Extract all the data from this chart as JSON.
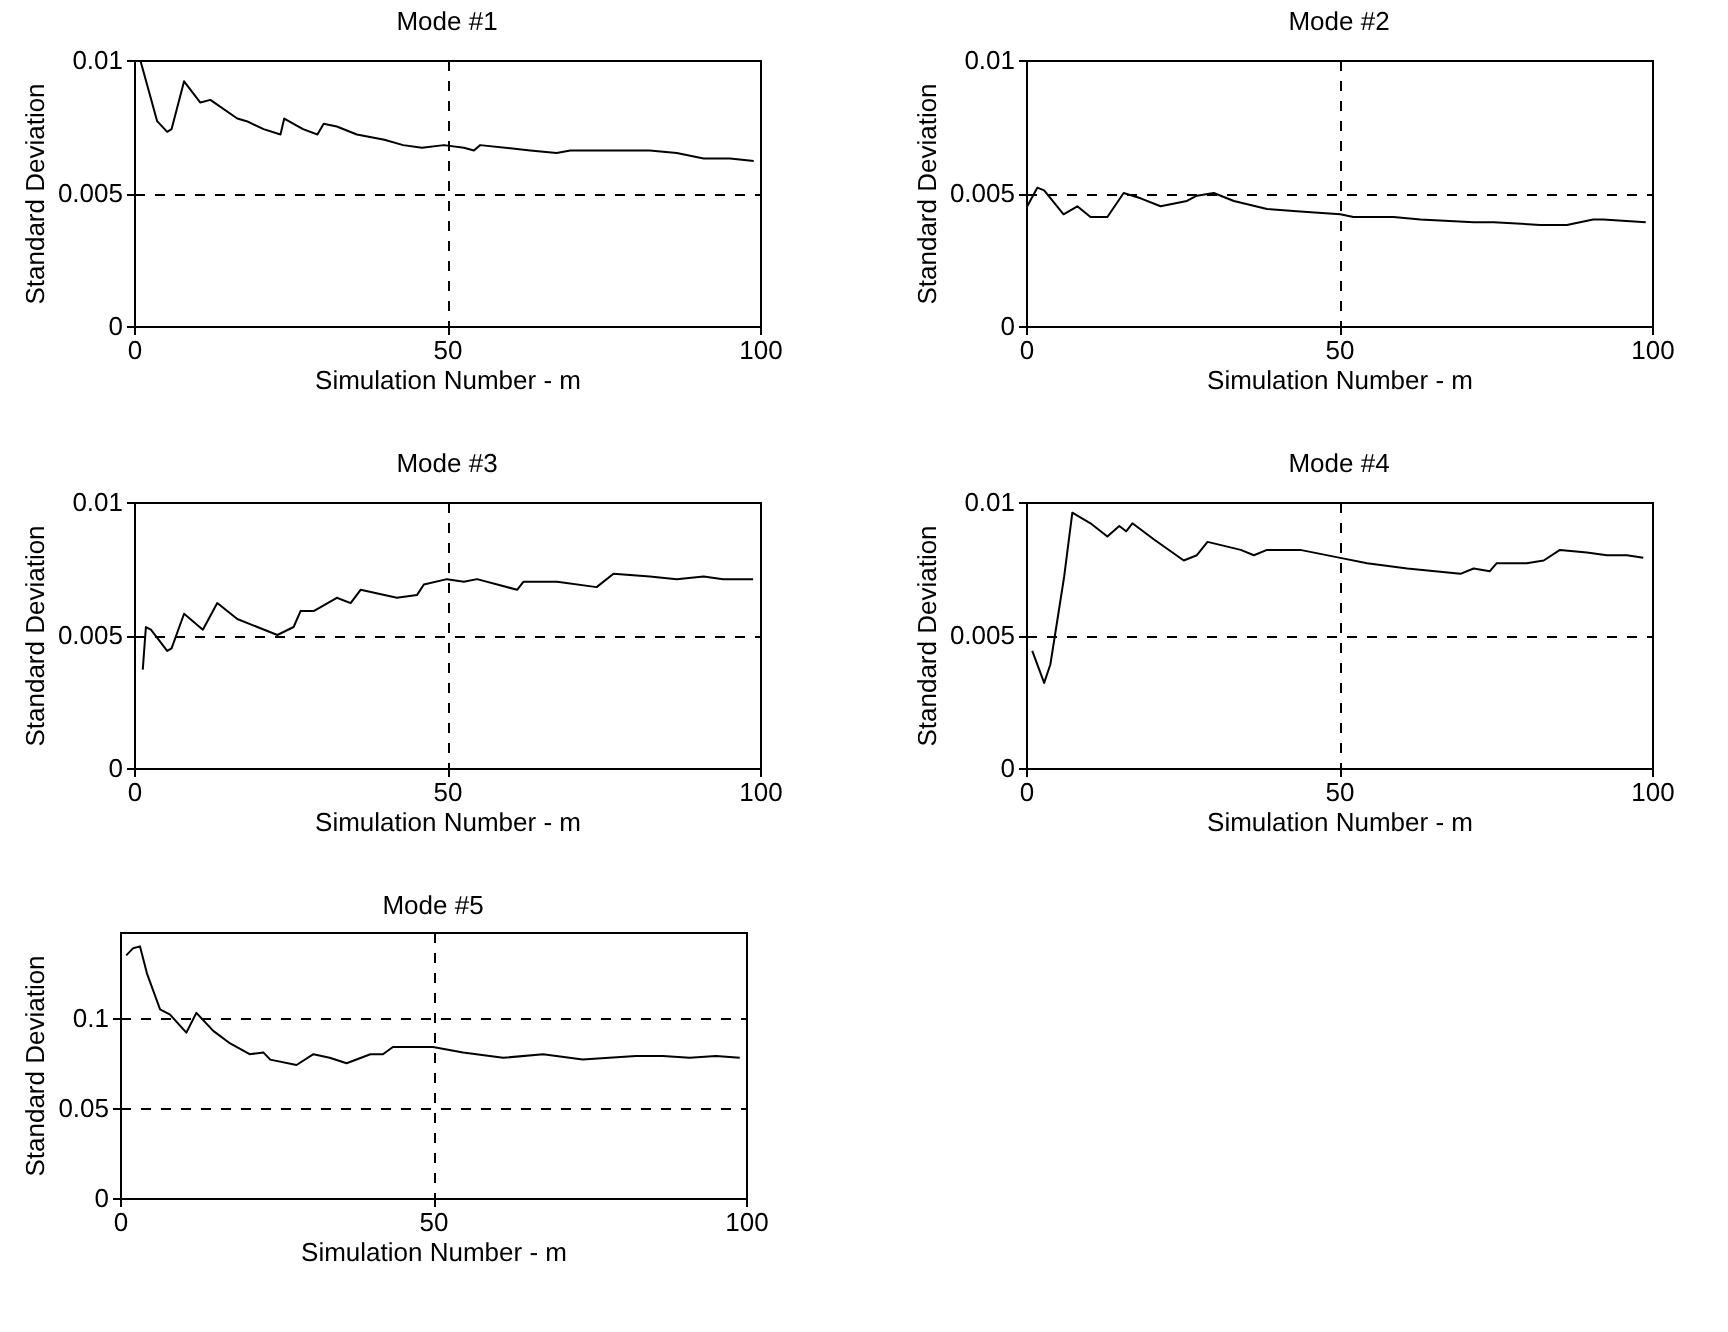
{
  "chart_data": [
    {
      "type": "line",
      "title": "Mode #1",
      "xlabel": "Simulation Number - m",
      "ylabel": "Standard Deviation",
      "xlim": [
        0,
        100
      ],
      "xticks": [
        0,
        50,
        100
      ],
      "ylim": [
        0,
        0.01
      ],
      "yticks": [
        0,
        0.005,
        0.01
      ],
      "grid": true,
      "line_style": "solid",
      "x": [
        1,
        3.7,
        5.3,
        6,
        8,
        10.6,
        12.2,
        16.5,
        18,
        20.7,
        23.4,
        24,
        27,
        29.3,
        30.3,
        32.4,
        35.6,
        40,
        43,
        46,
        49.5,
        52.7,
        54.3,
        55.3,
        63.3,
        67.5,
        69.7,
        72.9,
        82.4,
        86.7,
        91,
        95.2,
        99
      ],
      "series": [
        {
          "color": "#000000",
          "values": [
            0.01,
            0.0077,
            0.0073,
            0.0074,
            0.0092,
            0.0084,
            0.0085,
            0.0078,
            0.0077,
            0.0074,
            0.0072,
            0.0078,
            0.0074,
            0.0072,
            0.0076,
            0.0075,
            0.0072,
            0.007,
            0.0068,
            0.0067,
            0.0068,
            0.0067,
            0.0066,
            0.0068,
            0.0066,
            0.0065,
            0.0066,
            0.0066,
            0.0066,
            0.0065,
            0.0063,
            0.0063,
            0.0062
          ]
        }
      ]
    },
    {
      "type": "line",
      "title": "Mode #2",
      "xlabel": "Simulation Number - m",
      "ylabel": "Standard Deviation",
      "xlim": [
        0,
        100
      ],
      "xticks": [
        0,
        50,
        100
      ],
      "ylim": [
        0,
        0.01
      ],
      "yticks": [
        0,
        0.005,
        0.01
      ],
      "grid": true,
      "line_style": "solid",
      "x": [
        0.2,
        1.8,
        2.9,
        6,
        8.2,
        10.3,
        13,
        15.6,
        18.3,
        21.5,
        25.7,
        27.3,
        30,
        33.2,
        38.5,
        43.8,
        50.2,
        52.3,
        58.7,
        63,
        71.5,
        74.7,
        82.1,
        86.4,
        90.6,
        92.2,
        99
      ],
      "series": [
        {
          "color": "#000000",
          "values": [
            0.0045,
            0.0052,
            0.0051,
            0.0042,
            0.0045,
            0.0041,
            0.0041,
            0.005,
            0.0048,
            0.0045,
            0.0047,
            0.0049,
            0.005,
            0.0047,
            0.0044,
            0.0043,
            0.0042,
            0.0041,
            0.0041,
            0.004,
            0.0039,
            0.0039,
            0.0038,
            0.0038,
            0.004,
            0.004,
            0.0039
          ]
        }
      ]
    },
    {
      "type": "line",
      "title": "Mode #3",
      "xlabel": "Simulation Number - m",
      "ylabel": "Standard Deviation",
      "xlim": [
        0,
        100
      ],
      "xticks": [
        0,
        50,
        100
      ],
      "ylim": [
        0,
        0.01
      ],
      "yticks": [
        0,
        0.005,
        0.01
      ],
      "grid": true,
      "line_style": "solid",
      "x": [
        1.4,
        1.9,
        2.7,
        5.3,
        6,
        8,
        11,
        13.3,
        16.5,
        19.7,
        22.9,
        25.5,
        26.6,
        28.7,
        32.4,
        34.6,
        36.2,
        42,
        45.2,
        46.3,
        50,
        52.7,
        54.8,
        61.2,
        62.2,
        67.6,
        73.9,
        76.6,
        82.4,
        86.7,
        91,
        94.1,
        98.9
      ],
      "series": [
        {
          "color": "#000000",
          "values": [
            0.0037,
            0.0053,
            0.0052,
            0.0044,
            0.0045,
            0.0058,
            0.0052,
            0.0062,
            0.0056,
            0.0053,
            0.005,
            0.0053,
            0.0059,
            0.0059,
            0.0064,
            0.0062,
            0.0067,
            0.0064,
            0.0065,
            0.0069,
            0.0071,
            0.007,
            0.0071,
            0.0067,
            0.007,
            0.007,
            0.0068,
            0.0073,
            0.0072,
            0.0071,
            0.0072,
            0.0071,
            0.0071
          ]
        }
      ]
    },
    {
      "type": "line",
      "title": "Mode #4",
      "xlabel": "Simulation Number - m",
      "ylabel": "Standard Deviation",
      "xlim": [
        0,
        100
      ],
      "xticks": [
        0,
        50,
        100
      ],
      "ylim": [
        0,
        0.01
      ],
      "yticks": [
        0,
        0.005,
        0.01
      ],
      "grid": true,
      "line_style": "solid",
      "x": [
        1,
        2.9,
        3.9,
        6.1,
        7.4,
        10.3,
        13,
        14.9,
        16,
        17,
        20.4,
        25.2,
        27.3,
        29,
        34.3,
        36.4,
        38.5,
        43.8,
        50.2,
        54.5,
        60.9,
        69.4,
        71.5,
        74.1,
        75.2,
        80,
        82.7,
        85.3,
        89.6,
        92.8,
        96,
        98.6
      ],
      "series": [
        {
          "color": "#000000",
          "values": [
            0.0044,
            0.0032,
            0.0039,
            0.0072,
            0.0096,
            0.0092,
            0.0087,
            0.0091,
            0.0089,
            0.0092,
            0.0086,
            0.0078,
            0.008,
            0.0085,
            0.0082,
            0.008,
            0.0082,
            0.0082,
            0.0079,
            0.0077,
            0.0075,
            0.0073,
            0.0075,
            0.0074,
            0.0077,
            0.0077,
            0.0078,
            0.0082,
            0.0081,
            0.008,
            0.008,
            0.0079
          ]
        }
      ]
    },
    {
      "type": "line",
      "title": "Mode #5",
      "xlabel": "Simulation Number - m",
      "ylabel": "Standard Deviation",
      "xlim": [
        0,
        100
      ],
      "xticks": [
        0,
        50,
        100
      ],
      "ylim": [
        0,
        0.148
      ],
      "yticks": [
        0,
        0.05,
        0.1
      ],
      "grid": true,
      "line_style": "solid",
      "x": [
        1,
        2.1,
        3.2,
        4.3,
        6.4,
        8,
        10.6,
        12.2,
        14.9,
        17.6,
        20.7,
        22.9,
        24,
        28.2,
        30.9,
        33.5,
        36.2,
        40,
        42,
        43.6,
        50,
        54.8,
        61.2,
        67.6,
        73.9,
        82.4,
        86.7,
        91,
        95.2,
        99
      ],
      "series": [
        {
          "color": "#000000",
          "values": [
            0.135,
            0.139,
            0.14,
            0.125,
            0.105,
            0.102,
            0.092,
            0.103,
            0.093,
            0.086,
            0.08,
            0.081,
            0.077,
            0.074,
            0.08,
            0.078,
            0.075,
            0.08,
            0.08,
            0.084,
            0.084,
            0.081,
            0.078,
            0.08,
            0.077,
            0.079,
            0.079,
            0.078,
            0.079,
            0.078
          ]
        }
      ]
    }
  ]
}
